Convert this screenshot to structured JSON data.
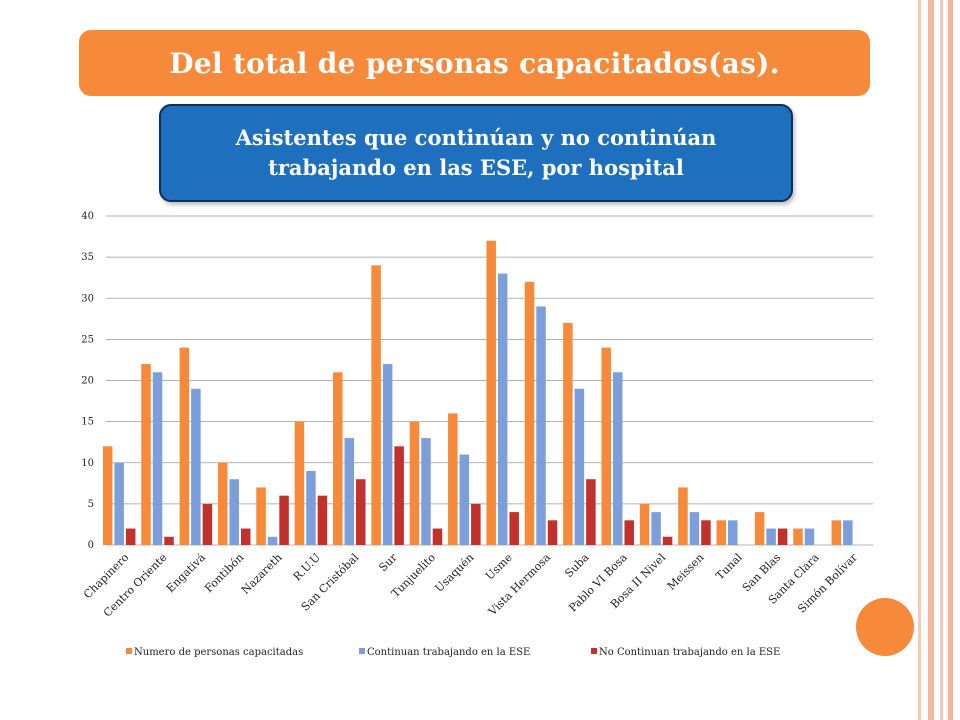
{
  "slide": {
    "banner_title": "Del total de personas capacitados(as).",
    "accent_color": "#f7893a"
  },
  "chart_data": {
    "type": "bar",
    "title": "Asistentes que continúan y no continúan trabajando en las ESE, por hospital",
    "xlabel": "",
    "ylabel": "",
    "ylim": [
      0,
      40
    ],
    "yticks": [
      0,
      5,
      10,
      15,
      20,
      25,
      30,
      35,
      40
    ],
    "grid": true,
    "legend_position": "bottom",
    "categories": [
      "Chapinero",
      "Centro Oriente",
      "Engativá",
      "Fontibón",
      "Nazareth",
      "R.U.U",
      "San Cristóbal",
      "Sur",
      "Tunjuelito",
      "Usaquén",
      "Usme",
      "Vista Hermosa",
      "Suba",
      "Pablo VI Bosa",
      "Bosa II Nivel",
      "Meissen",
      "Tunal",
      "San Blas",
      "Santa Clara",
      "Simón Bolívar"
    ],
    "series": [
      {
        "name": "Numero de personas capacitadas",
        "color": "#f7893a",
        "values": [
          12,
          22,
          24,
          10,
          7,
          15,
          21,
          34,
          15,
          16,
          37,
          32,
          27,
          24,
          5,
          7,
          3,
          4,
          2,
          3
        ]
      },
      {
        "name": "Continuan trabajando en la ESE",
        "color": "#7c9fdc",
        "values": [
          10,
          21,
          19,
          8,
          1,
          9,
          13,
          22,
          13,
          11,
          33,
          29,
          19,
          21,
          4,
          4,
          3,
          2,
          2,
          3
        ]
      },
      {
        "name": "No Continuan trabajando en la ESE",
        "color": "#c0322b",
        "values": [
          2,
          1,
          5,
          2,
          6,
          6,
          8,
          12,
          2,
          5,
          4,
          3,
          8,
          3,
          1,
          3,
          0,
          2,
          0,
          0
        ]
      }
    ]
  }
}
